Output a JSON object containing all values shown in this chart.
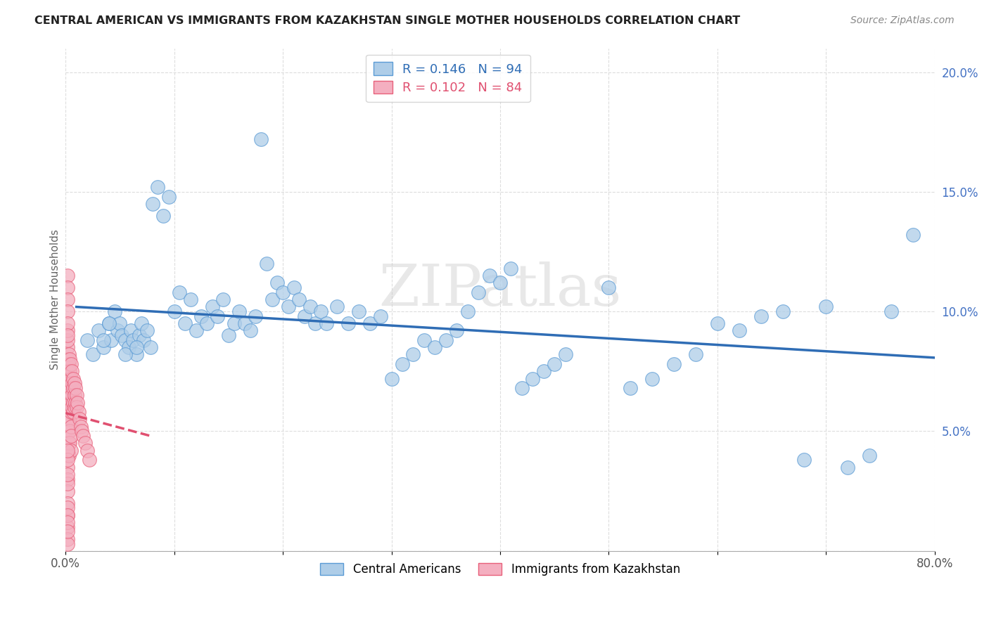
{
  "title": "CENTRAL AMERICAN VS IMMIGRANTS FROM KAZAKHSTAN SINGLE MOTHER HOUSEHOLDS CORRELATION CHART",
  "source": "Source: ZipAtlas.com",
  "ylabel": "Single Mother Households",
  "xlim": [
    0.0,
    0.8
  ],
  "ylim": [
    0.0,
    0.21
  ],
  "blue_R": 0.146,
  "blue_N": 94,
  "pink_R": 0.102,
  "pink_N": 84,
  "blue_color": "#aecde8",
  "blue_edge_color": "#5b9bd5",
  "blue_line_color": "#2f6db5",
  "pink_color": "#f4afc0",
  "pink_edge_color": "#e8607a",
  "pink_line_color": "#e05070",
  "watermark": "ZIPatlas",
  "ytick_color": "#4472c4",
  "blue_x": [
    0.02,
    0.025,
    0.03,
    0.035,
    0.04,
    0.042,
    0.045,
    0.048,
    0.05,
    0.052,
    0.055,
    0.058,
    0.06,
    0.062,
    0.065,
    0.068,
    0.07,
    0.072,
    0.075,
    0.078,
    0.08,
    0.085,
    0.09,
    0.095,
    0.1,
    0.105,
    0.11,
    0.115,
    0.12,
    0.125,
    0.13,
    0.135,
    0.14,
    0.145,
    0.15,
    0.155,
    0.16,
    0.165,
    0.17,
    0.175,
    0.18,
    0.185,
    0.19,
    0.195,
    0.2,
    0.205,
    0.21,
    0.215,
    0.22,
    0.225,
    0.23,
    0.235,
    0.24,
    0.25,
    0.26,
    0.27,
    0.28,
    0.29,
    0.3,
    0.31,
    0.32,
    0.33,
    0.34,
    0.35,
    0.36,
    0.37,
    0.38,
    0.39,
    0.4,
    0.41,
    0.42,
    0.43,
    0.44,
    0.45,
    0.46,
    0.5,
    0.52,
    0.54,
    0.56,
    0.58,
    0.6,
    0.62,
    0.64,
    0.66,
    0.68,
    0.7,
    0.72,
    0.74,
    0.76,
    0.78,
    0.035,
    0.04,
    0.055,
    0.065
  ],
  "blue_y": [
    0.088,
    0.082,
    0.092,
    0.085,
    0.095,
    0.088,
    0.1,
    0.092,
    0.095,
    0.09,
    0.088,
    0.085,
    0.092,
    0.088,
    0.082,
    0.09,
    0.095,
    0.088,
    0.092,
    0.085,
    0.145,
    0.152,
    0.14,
    0.148,
    0.1,
    0.108,
    0.095,
    0.105,
    0.092,
    0.098,
    0.095,
    0.102,
    0.098,
    0.105,
    0.09,
    0.095,
    0.1,
    0.095,
    0.092,
    0.098,
    0.172,
    0.12,
    0.105,
    0.112,
    0.108,
    0.102,
    0.11,
    0.105,
    0.098,
    0.102,
    0.095,
    0.1,
    0.095,
    0.102,
    0.095,
    0.1,
    0.095,
    0.098,
    0.072,
    0.078,
    0.082,
    0.088,
    0.085,
    0.088,
    0.092,
    0.1,
    0.108,
    0.115,
    0.112,
    0.118,
    0.068,
    0.072,
    0.075,
    0.078,
    0.082,
    0.11,
    0.068,
    0.072,
    0.078,
    0.082,
    0.095,
    0.092,
    0.098,
    0.1,
    0.038,
    0.102,
    0.035,
    0.04,
    0.1,
    0.132,
    0.088,
    0.095,
    0.082,
    0.085
  ],
  "pink_x": [
    0.002,
    0.002,
    0.002,
    0.002,
    0.002,
    0.002,
    0.002,
    0.002,
    0.002,
    0.002,
    0.002,
    0.002,
    0.002,
    0.002,
    0.002,
    0.002,
    0.002,
    0.002,
    0.002,
    0.002,
    0.003,
    0.003,
    0.003,
    0.003,
    0.003,
    0.003,
    0.003,
    0.003,
    0.003,
    0.003,
    0.004,
    0.004,
    0.004,
    0.004,
    0.004,
    0.004,
    0.004,
    0.004,
    0.005,
    0.005,
    0.005,
    0.005,
    0.005,
    0.005,
    0.005,
    0.005,
    0.006,
    0.006,
    0.006,
    0.006,
    0.007,
    0.007,
    0.007,
    0.007,
    0.008,
    0.008,
    0.008,
    0.009,
    0.009,
    0.01,
    0.01,
    0.011,
    0.012,
    0.013,
    0.014,
    0.015,
    0.016,
    0.018,
    0.02,
    0.022,
    0.002,
    0.002,
    0.002,
    0.002,
    0.002,
    0.002,
    0.002,
    0.002,
    0.002,
    0.002,
    0.002,
    0.002,
    0.002,
    0.002
  ],
  "pink_y": [
    0.085,
    0.08,
    0.075,
    0.07,
    0.065,
    0.06,
    0.055,
    0.05,
    0.045,
    0.04,
    0.035,
    0.03,
    0.025,
    0.02,
    0.015,
    0.01,
    0.005,
    0.003,
    0.088,
    0.092,
    0.082,
    0.078,
    0.075,
    0.07,
    0.065,
    0.06,
    0.055,
    0.05,
    0.045,
    0.04,
    0.08,
    0.075,
    0.07,
    0.065,
    0.06,
    0.055,
    0.05,
    0.045,
    0.078,
    0.072,
    0.068,
    0.062,
    0.058,
    0.052,
    0.048,
    0.042,
    0.075,
    0.07,
    0.065,
    0.06,
    0.072,
    0.068,
    0.062,
    0.058,
    0.07,
    0.065,
    0.06,
    0.068,
    0.062,
    0.065,
    0.06,
    0.062,
    0.058,
    0.055,
    0.052,
    0.05,
    0.048,
    0.045,
    0.042,
    0.038,
    0.115,
    0.11,
    0.105,
    0.1,
    0.095,
    0.09,
    0.018,
    0.015,
    0.012,
    0.008,
    0.028,
    0.032,
    0.038,
    0.042
  ]
}
